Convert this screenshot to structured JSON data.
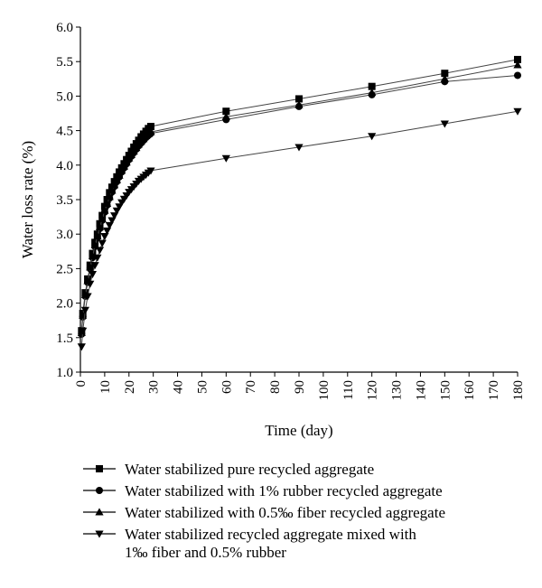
{
  "chart_data": {
    "type": "line",
    "title": "",
    "xlabel": "Time (day)",
    "ylabel": "Water loss rate (%)",
    "xlim": [
      0,
      180
    ],
    "ylim": [
      1.0,
      6.0
    ],
    "xticks": [
      0,
      10,
      20,
      30,
      40,
      50,
      60,
      70,
      80,
      90,
      100,
      110,
      120,
      130,
      140,
      150,
      160,
      170,
      180
    ],
    "yticks": [
      "1.0",
      "1.5",
      "2.0",
      "2.5",
      "3.0",
      "3.5",
      "4.0",
      "4.5",
      "5.0",
      "5.5",
      "6.0"
    ],
    "grid": false,
    "legend_position": "bottom",
    "series": [
      {
        "name": "Water stabilized pure recycled aggregate",
        "marker": "square",
        "x": [
          0.5,
          1,
          2,
          3,
          4,
          5,
          6,
          7,
          8,
          9,
          10,
          11,
          12,
          13,
          14,
          15,
          16,
          17,
          18,
          19,
          20,
          21,
          22,
          23,
          24,
          25,
          26,
          27,
          28,
          29,
          60,
          90,
          120,
          150,
          180
        ],
        "y": [
          1.6,
          1.85,
          2.15,
          2.35,
          2.55,
          2.72,
          2.88,
          3.0,
          3.15,
          3.27,
          3.4,
          3.5,
          3.6,
          3.68,
          3.76,
          3.83,
          3.9,
          3.96,
          4.02,
          4.08,
          4.14,
          4.2,
          4.26,
          4.31,
          4.36,
          4.41,
          4.45,
          4.49,
          4.53,
          4.56,
          4.78,
          4.96,
          5.14,
          5.33,
          5.53
        ]
      },
      {
        "name": "Water stabilized with 1% rubber recycled aggregate",
        "marker": "circle",
        "x": [
          0.5,
          1,
          2,
          3,
          4,
          5,
          6,
          7,
          8,
          9,
          10,
          11,
          12,
          13,
          14,
          15,
          16,
          17,
          18,
          19,
          20,
          21,
          22,
          23,
          24,
          25,
          26,
          27,
          28,
          29,
          60,
          90,
          120,
          150,
          180
        ],
        "y": [
          1.55,
          1.8,
          2.1,
          2.3,
          2.5,
          2.66,
          2.82,
          2.95,
          3.08,
          3.2,
          3.32,
          3.42,
          3.52,
          3.61,
          3.69,
          3.76,
          3.83,
          3.9,
          3.96,
          4.02,
          4.08,
          4.13,
          4.18,
          4.23,
          4.28,
          4.32,
          4.36,
          4.4,
          4.43,
          4.46,
          4.66,
          4.85,
          5.02,
          5.21,
          5.3
        ]
      },
      {
        "name": "Water stabilized with 0.5‰ fiber recycled aggregate",
        "marker": "triangle-up",
        "x": [
          0.5,
          1,
          2,
          3,
          4,
          5,
          6,
          7,
          8,
          9,
          10,
          11,
          12,
          13,
          14,
          15,
          16,
          17,
          18,
          19,
          20,
          21,
          22,
          23,
          24,
          25,
          26,
          27,
          28,
          29,
          60,
          90,
          120,
          150,
          180
        ],
        "y": [
          1.57,
          1.82,
          2.12,
          2.32,
          2.52,
          2.68,
          2.84,
          2.97,
          3.1,
          3.22,
          3.34,
          3.44,
          3.54,
          3.63,
          3.71,
          3.78,
          3.85,
          3.92,
          3.98,
          4.04,
          4.1,
          4.15,
          4.2,
          4.25,
          4.3,
          4.34,
          4.38,
          4.42,
          4.45,
          4.48,
          4.7,
          4.87,
          5.05,
          5.25,
          5.45
        ]
      },
      {
        "name": "Water stabilized recycled aggregate mixed with\n1‰ fiber and 0.5% rubber",
        "marker": "triangle-down",
        "x": [
          0.5,
          1,
          2,
          3,
          4,
          5,
          6,
          7,
          8,
          9,
          10,
          11,
          12,
          13,
          14,
          15,
          16,
          17,
          18,
          19,
          20,
          21,
          22,
          23,
          24,
          25,
          26,
          27,
          28,
          29,
          60,
          90,
          120,
          150,
          180
        ],
        "y": [
          1.37,
          1.6,
          1.9,
          2.1,
          2.28,
          2.42,
          2.55,
          2.66,
          2.77,
          2.87,
          2.97,
          3.05,
          3.13,
          3.2,
          3.27,
          3.34,
          3.4,
          3.46,
          3.51,
          3.56,
          3.61,
          3.65,
          3.69,
          3.73,
          3.77,
          3.8,
          3.83,
          3.86,
          3.89,
          3.92,
          4.1,
          4.26,
          4.42,
          4.6,
          4.78
        ]
      }
    ]
  },
  "legend": {
    "items": [
      {
        "label": "Water stabilized pure recycled aggregate",
        "lines": [
          "Water stabilized pure recycled aggregate"
        ],
        "marker": "square"
      },
      {
        "label": "Water stabilized with 1% rubber recycled aggregate",
        "lines": [
          "Water stabilized with 1% rubber recycled aggregate"
        ],
        "marker": "circle"
      },
      {
        "label": "Water stabilized with 0.5‰ fiber recycled aggregate",
        "lines": [
          "Water stabilized with 0.5‰ fiber recycled aggregate"
        ],
        "marker": "triangle-up"
      },
      {
        "label": "Water stabilized recycled aggregate mixed with 1‰ fiber and 0.5% rubber",
        "lines": [
          "Water stabilized recycled aggregate mixed with",
          "1‰ fiber and 0.5% rubber"
        ],
        "marker": "triangle-down"
      }
    ]
  }
}
